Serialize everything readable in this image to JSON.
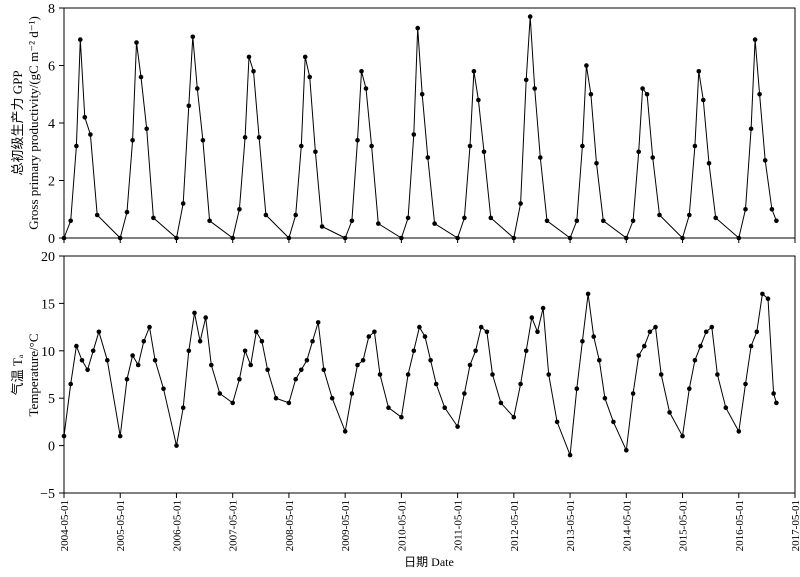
{
  "chart_data": [
    {
      "type": "line",
      "ylabel_cn": "总初级生产力  GPP",
      "ylabel_en": "Gross primary productivity/(gC m⁻² d⁻¹)",
      "ylim": [
        0,
        8
      ],
      "y_ticks": [
        "0",
        "2",
        "4",
        "6",
        "8"
      ],
      "grid": false,
      "series": [
        {
          "x": [
            2004.33,
            2004.45,
            2004.55,
            2004.62,
            2004.7,
            2004.8,
            2004.92,
            2005.33,
            2005.45,
            2005.55,
            2005.62,
            2005.7,
            2005.8,
            2005.92,
            2006.33,
            2006.45,
            2006.55,
            2006.62,
            2006.7,
            2006.8,
            2006.92,
            2007.33,
            2007.45,
            2007.55,
            2007.62,
            2007.7,
            2007.8,
            2007.92,
            2008.33,
            2008.45,
            2008.55,
            2008.62,
            2008.7,
            2008.8,
            2008.92,
            2009.33,
            2009.45,
            2009.55,
            2009.62,
            2009.7,
            2009.8,
            2009.92,
            2010.33,
            2010.45,
            2010.55,
            2010.62,
            2010.7,
            2010.8,
            2010.92,
            2011.33,
            2011.45,
            2011.55,
            2011.62,
            2011.7,
            2011.8,
            2011.92,
            2012.33,
            2012.45,
            2012.55,
            2012.62,
            2012.7,
            2012.8,
            2012.92,
            2013.33,
            2013.45,
            2013.55,
            2013.62,
            2013.7,
            2013.8,
            2013.92,
            2014.33,
            2014.45,
            2014.55,
            2014.62,
            2014.7,
            2014.8,
            2014.92,
            2015.33,
            2015.45,
            2015.55,
            2015.62,
            2015.7,
            2015.8,
            2015.92,
            2016.33,
            2016.45,
            2016.55,
            2016.62,
            2016.7,
            2016.8,
            2016.92,
            2017.0
          ],
          "values": [
            0.0,
            0.6,
            3.2,
            6.9,
            4.2,
            3.6,
            0.8,
            0.0,
            0.9,
            3.4,
            6.8,
            5.6,
            3.8,
            0.7,
            0.0,
            1.2,
            4.6,
            7.0,
            5.2,
            3.4,
            0.6,
            0.0,
            1.0,
            3.5,
            6.3,
            5.8,
            3.5,
            0.8,
            0.0,
            0.8,
            3.2,
            6.3,
            5.6,
            3.0,
            0.4,
            0.0,
            0.6,
            3.4,
            5.8,
            5.2,
            3.2,
            0.5,
            0.0,
            0.7,
            3.6,
            7.3,
            5.0,
            2.8,
            0.5,
            0.0,
            0.7,
            3.2,
            5.8,
            4.8,
            3.0,
            0.7,
            0.0,
            1.2,
            5.5,
            7.7,
            5.2,
            2.8,
            0.6,
            0.0,
            0.6,
            3.2,
            6.0,
            5.0,
            2.6,
            0.6,
            0.0,
            0.6,
            3.0,
            5.2,
            5.0,
            2.8,
            0.8,
            0.0,
            0.8,
            3.2,
            5.8,
            4.8,
            2.6,
            0.7,
            0.0,
            1.0,
            3.8,
            6.9,
            5.0,
            2.7,
            1.0,
            0.6
          ]
        }
      ]
    },
    {
      "type": "line",
      "ylabel_cn": "气温  Tₐ",
      "ylabel_en": "Temperature/°C",
      "xlabel": "日期  Date",
      "ylim": [
        -5,
        20
      ],
      "y_ticks": [
        "−5",
        "0",
        "5",
        "10",
        "15",
        "20"
      ],
      "x_ticks": [
        "2004-05-01",
        "2005-05-01",
        "2006-05-01",
        "2007-05-01",
        "2008-05-01",
        "2009-05-01",
        "2010-05-01",
        "2011-05-01",
        "2012-05-01",
        "2013-05-01",
        "2014-05-01",
        "2015-05-01",
        "2016-05-01",
        "2017-05-01"
      ],
      "grid": false,
      "series": [
        {
          "x": [
            2004.33,
            2004.45,
            2004.55,
            2004.65,
            2004.75,
            2004.85,
            2004.95,
            2005.1,
            2005.33,
            2005.45,
            2005.55,
            2005.65,
            2005.75,
            2005.85,
            2005.95,
            2006.1,
            2006.33,
            2006.45,
            2006.55,
            2006.65,
            2006.75,
            2006.85,
            2006.95,
            2007.1,
            2007.33,
            2007.45,
            2007.55,
            2007.65,
            2007.75,
            2007.85,
            2007.95,
            2008.1,
            2008.33,
            2008.45,
            2008.55,
            2008.65,
            2008.75,
            2008.85,
            2008.95,
            2009.1,
            2009.33,
            2009.45,
            2009.55,
            2009.65,
            2009.75,
            2009.85,
            2009.95,
            2010.1,
            2010.33,
            2010.45,
            2010.55,
            2010.65,
            2010.75,
            2010.85,
            2010.95,
            2011.1,
            2011.33,
            2011.45,
            2011.55,
            2011.65,
            2011.75,
            2011.85,
            2011.95,
            2012.1,
            2012.33,
            2012.45,
            2012.55,
            2012.65,
            2012.75,
            2012.85,
            2012.95,
            2013.1,
            2013.33,
            2013.45,
            2013.55,
            2013.65,
            2013.75,
            2013.85,
            2013.95,
            2014.1,
            2014.33,
            2014.45,
            2014.55,
            2014.65,
            2014.75,
            2014.85,
            2014.95,
            2015.1,
            2015.33,
            2015.45,
            2015.55,
            2015.65,
            2015.75,
            2015.85,
            2015.95,
            2016.1,
            2016.33,
            2016.45,
            2016.55,
            2016.65,
            2016.75,
            2016.85,
            2016.95,
            2017.0
          ],
          "values": [
            1.0,
            6.5,
            10.5,
            9.0,
            8.0,
            10.0,
            12.0,
            9.0,
            1.0,
            7.0,
            9.5,
            8.5,
            11.0,
            12.5,
            9.0,
            6.0,
            0.0,
            4.0,
            10.0,
            14.0,
            11.0,
            13.5,
            8.5,
            5.5,
            4.5,
            7.0,
            10.0,
            8.5,
            12.0,
            11.0,
            8.0,
            5.0,
            4.5,
            7.0,
            8.0,
            9.0,
            11.0,
            13.0,
            8.0,
            5.0,
            1.5,
            5.5,
            8.5,
            9.0,
            11.5,
            12.0,
            7.5,
            4.0,
            3.0,
            7.5,
            10.0,
            12.5,
            11.5,
            9.0,
            6.5,
            4.0,
            2.0,
            5.5,
            8.5,
            10.0,
            12.5,
            12.0,
            7.5,
            4.5,
            3.0,
            6.5,
            10.0,
            13.5,
            12.0,
            14.5,
            7.5,
            2.5,
            -1.0,
            6.0,
            11.0,
            16.0,
            11.5,
            9.0,
            5.0,
            2.5,
            -0.5,
            5.5,
            9.5,
            10.5,
            12.0,
            12.5,
            7.5,
            3.5,
            1.0,
            6.0,
            9.0,
            10.5,
            12.0,
            12.5,
            7.5,
            4.0,
            1.5,
            6.5,
            10.5,
            12.0,
            16.0,
            15.5,
            5.5,
            4.5
          ]
        }
      ]
    }
  ]
}
